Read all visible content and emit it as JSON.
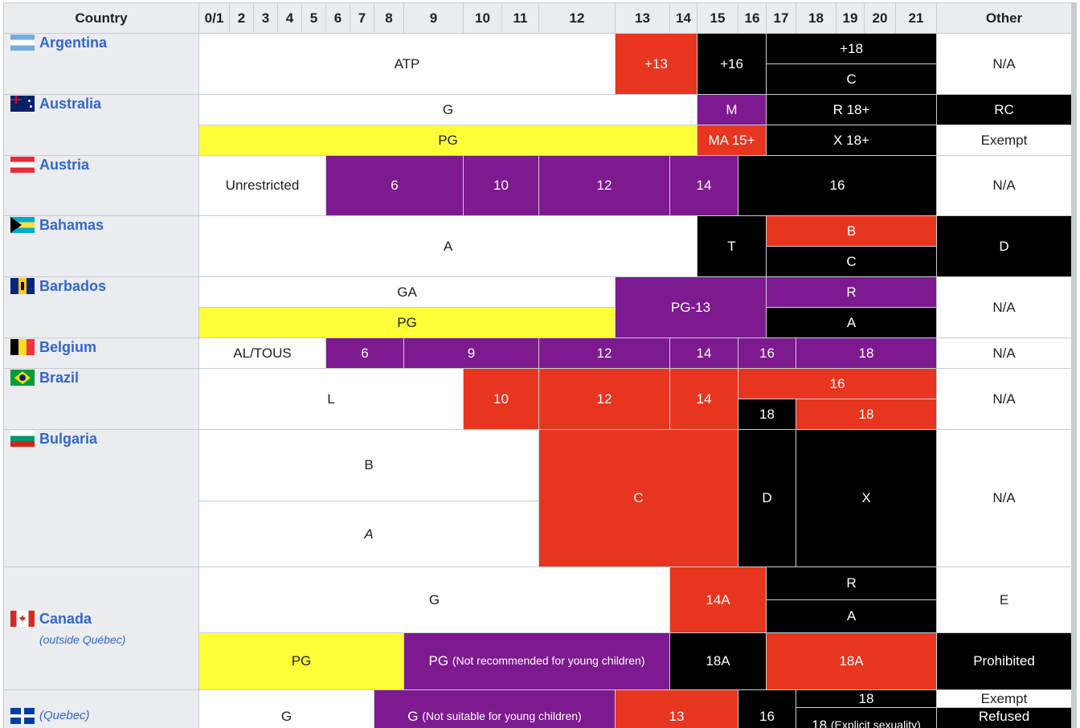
{
  "header": {
    "country": "Country",
    "ages": [
      "0/1",
      "2",
      "3",
      "4",
      "5",
      "6",
      "7",
      "8",
      "9",
      "10",
      "11",
      "12",
      "13",
      "14",
      "15",
      "16",
      "17",
      "18",
      "19",
      "20",
      "21"
    ],
    "other": "Other"
  },
  "countries": {
    "argentina": {
      "name": "Argentina",
      "flag": "argentina-flag-icon"
    },
    "australia": {
      "name": "Australia",
      "flag": "australia-flag-icon"
    },
    "austria": {
      "name": "Austria",
      "flag": "austria-flag-icon"
    },
    "bahamas": {
      "name": "Bahamas",
      "flag": "bahamas-flag-icon"
    },
    "barbados": {
      "name": "Barbados",
      "flag": "barbados-flag-icon"
    },
    "belgium": {
      "name": "Belgium",
      "flag": "belgium-flag-icon"
    },
    "brazil": {
      "name": "Brazil",
      "flag": "brazil-flag-icon"
    },
    "bulgaria": {
      "name": "Bulgaria",
      "flag": "bulgaria-flag-icon"
    },
    "canada": {
      "name": "Canada",
      "note": "(outside Québec)",
      "flag": "canada-flag-icon"
    },
    "quebec": {
      "name": "(Quebec)",
      "flag": "quebec-flag-icon"
    }
  },
  "ratings": {
    "argentina": {
      "atp": "ATP",
      "r13": "+13",
      "r16": "+16",
      "r18": "+18",
      "c": "C",
      "other": "N/A"
    },
    "australia": {
      "g": "G",
      "m": "M",
      "r18": "R 18+",
      "rc": "RC",
      "pg": "PG",
      "ma15": "MA 15+",
      "x18": "X 18+",
      "exempt": "Exempt"
    },
    "austria": {
      "unrestricted": "Unrestricted",
      "r6": "6",
      "r10": "10",
      "r12": "12",
      "r14": "14",
      "r16": "16",
      "other": "N/A"
    },
    "bahamas": {
      "a": "A",
      "t": "T",
      "b": "B",
      "c": "C",
      "d": "D"
    },
    "barbados": {
      "ga": "GA",
      "pg13": "PG-13",
      "r": "R",
      "pg": "PG",
      "a": "A",
      "other": "N/A"
    },
    "belgium": {
      "al": "AL/TOUS",
      "r6": "6",
      "r9": "9",
      "r12": "12",
      "r14": "14",
      "r16": "16",
      "r18": "18",
      "other": "N/A"
    },
    "brazil": {
      "l": "L",
      "r10": "10",
      "r12": "12",
      "r14": "14",
      "r16": "16",
      "r18a": "18",
      "r18b": "18",
      "other": "N/A"
    },
    "bulgaria": {
      "b": "B",
      "c": "C",
      "d": "D",
      "x": "X",
      "a": "A",
      "other": "N/A"
    },
    "canada": {
      "g": "G",
      "r14a": "14A",
      "r": "R",
      "e": "E",
      "a": "A",
      "pg": "PG",
      "pg_nr": "PG",
      "pg_nr_note": "(Not recommended for young children)",
      "r18a_black": "18A",
      "r18a_red": "18A",
      "prohibited": "Prohibited"
    },
    "quebec": {
      "g": "G",
      "g_ns": "G",
      "g_ns_note": "(Not suitable for young children)",
      "r13": "13",
      "r16": "16",
      "r18": "18",
      "exempt": "Exempt",
      "r18x": "18",
      "r18x_note": "(Explicit sexuality)",
      "refused": "Refused classification"
    }
  },
  "colors": {
    "white": "#ffffff",
    "yellow": "#ffff3a",
    "purple": "#7d1a8f",
    "red": "#e8351f",
    "black": "#000000",
    "header": "#eaecf0",
    "link": "#3366cc"
  }
}
